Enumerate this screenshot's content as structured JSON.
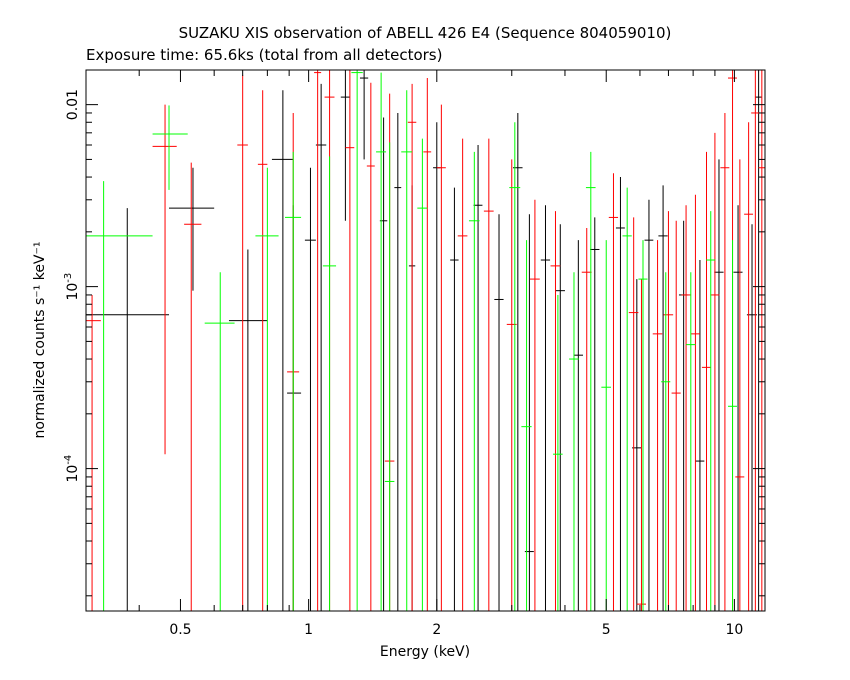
{
  "chart_data": {
    "type": "scatter",
    "title": "SUZAKU XIS observation of ABELL 426 E4 (Sequence 804059010)",
    "subtitle": "Exposure time: 65.6ks (total from all detectors)",
    "xlabel": "Energy (keV)",
    "ylabel": "normalized counts s⁻¹ keV⁻¹",
    "x_scale": "log",
    "y_scale": "log",
    "xlim": [
      0.3,
      11.8
    ],
    "ylim": [
      1.65e-05,
      0.0155
    ],
    "x_ticks": [
      {
        "value": 0.5,
        "label": "0.5"
      },
      {
        "value": 1,
        "label": "1"
      },
      {
        "value": 2,
        "label": "2"
      },
      {
        "value": 5,
        "label": "5"
      },
      {
        "value": 10,
        "label": "10"
      }
    ],
    "y_ticks": [
      {
        "value": 0.0001,
        "label": "10",
        "exponent": "-4"
      },
      {
        "value": 0.001,
        "label": "10",
        "exponent": "-3"
      },
      {
        "value": 0.01,
        "label": "0.01",
        "exponent": ""
      }
    ],
    "grid": false,
    "legend": "none",
    "series": [
      {
        "color": "#000000",
        "points": [
          {
            "x": 0.375,
            "xlo": 0.3,
            "xhi": 0.47,
            "y": 0.0007,
            "ylo": 0.0,
            "yhi": 0.0027
          },
          {
            "x": 0.535,
            "xlo": 0.47,
            "xhi": 0.6,
            "y": 0.0027,
            "ylo": 0.00095,
            "yhi": 0.0045
          },
          {
            "x": 0.72,
            "xlo": 0.65,
            "xhi": 0.8,
            "y": 0.00065,
            "ylo": 0.0,
            "yhi": 0.0016
          },
          {
            "x": 0.87,
            "xlo": 0.82,
            "xhi": 0.92,
            "y": 0.005,
            "ylo": 0.0,
            "yhi": 0.012
          },
          {
            "x": 0.92,
            "xlo": 0.89,
            "xhi": 0.96,
            "y": 0.00026,
            "ylo": 0.0,
            "yhi": 0.0028
          },
          {
            "x": 1.01,
            "xlo": 0.98,
            "xhi": 1.04,
            "y": 0.0018,
            "ylo": 0.0,
            "yhi": 0.0045
          },
          {
            "x": 1.07,
            "xlo": 1.04,
            "xhi": 1.1,
            "y": 0.006,
            "ylo": 0.0,
            "yhi": 0.013
          },
          {
            "x": 1.22,
            "xlo": 1.19,
            "xhi": 1.25,
            "y": 0.011,
            "ylo": 0.0023,
            "yhi": 0.016
          },
          {
            "x": 1.35,
            "xlo": 1.32,
            "xhi": 1.38,
            "y": 0.014,
            "ylo": 0.005,
            "yhi": 0.016
          },
          {
            "x": 1.5,
            "xlo": 1.47,
            "xhi": 1.53,
            "y": 0.0023,
            "ylo": 0.0,
            "yhi": 0.0085
          },
          {
            "x": 1.62,
            "xlo": 1.59,
            "xhi": 1.65,
            "y": 0.0035,
            "ylo": 0.0,
            "yhi": 0.009
          },
          {
            "x": 1.75,
            "xlo": 1.72,
            "xhi": 1.78,
            "y": 0.0013,
            "ylo": 0.0,
            "yhi": 0.0036
          },
          {
            "x": 2.0,
            "xlo": 1.96,
            "xhi": 2.04,
            "y": 0.0045,
            "ylo": 0.0,
            "yhi": 0.008
          },
          {
            "x": 2.2,
            "xlo": 2.15,
            "xhi": 2.25,
            "y": 0.0014,
            "ylo": 0.0,
            "yhi": 0.0035
          },
          {
            "x": 2.5,
            "xlo": 2.44,
            "xhi": 2.56,
            "y": 0.0028,
            "ylo": 0.0,
            "yhi": 0.006
          },
          {
            "x": 2.8,
            "xlo": 2.73,
            "xhi": 2.87,
            "y": 0.00085,
            "ylo": 0.0,
            "yhi": 0.0025
          },
          {
            "x": 3.1,
            "xlo": 3.02,
            "xhi": 3.18,
            "y": 0.0045,
            "ylo": 0.0,
            "yhi": 0.009
          },
          {
            "x": 3.3,
            "xlo": 3.22,
            "xhi": 3.38,
            "y": 3.5e-05,
            "ylo": 0.0,
            "yhi": 0.0025
          },
          {
            "x": 3.6,
            "xlo": 3.51,
            "xhi": 3.69,
            "y": 0.0014,
            "ylo": 0.0,
            "yhi": 0.0028
          },
          {
            "x": 3.9,
            "xlo": 3.8,
            "xhi": 4.0,
            "y": 0.00095,
            "ylo": 0.0,
            "yhi": 0.0022
          },
          {
            "x": 4.3,
            "xlo": 4.19,
            "xhi": 4.41,
            "y": 0.00042,
            "ylo": 0.0,
            "yhi": 0.0018
          },
          {
            "x": 4.7,
            "xlo": 4.58,
            "xhi": 4.82,
            "y": 0.0016,
            "ylo": 0.0,
            "yhi": 0.0024
          },
          {
            "x": 5.4,
            "xlo": 5.27,
            "xhi": 5.53,
            "y": 0.0021,
            "ylo": 0.0,
            "yhi": 0.004
          },
          {
            "x": 5.9,
            "xlo": 5.75,
            "xhi": 6.05,
            "y": 0.00013,
            "ylo": 0.0,
            "yhi": 0.0011
          },
          {
            "x": 6.3,
            "xlo": 6.15,
            "xhi": 6.45,
            "y": 0.0018,
            "ylo": 0.0,
            "yhi": 0.003
          },
          {
            "x": 6.8,
            "xlo": 6.63,
            "xhi": 6.97,
            "y": 0.0019,
            "ylo": 0.0,
            "yhi": 0.0036
          },
          {
            "x": 7.6,
            "xlo": 7.41,
            "xhi": 7.79,
            "y": 0.0009,
            "ylo": 0.0,
            "yhi": 0.0023
          },
          {
            "x": 8.3,
            "xlo": 8.1,
            "xhi": 8.5,
            "y": 0.00011,
            "ylo": 0.0,
            "yhi": 0.0014
          },
          {
            "x": 9.2,
            "xlo": 8.97,
            "xhi": 9.43,
            "y": 0.0012,
            "ylo": 0.0,
            "yhi": 0.005
          },
          {
            "x": 10.2,
            "xlo": 9.95,
            "xhi": 10.45,
            "y": 0.0012,
            "ylo": 0.0,
            "yhi": 0.0028
          },
          {
            "x": 11.0,
            "xlo": 10.7,
            "xhi": 11.3,
            "y": 0.0007,
            "ylo": 0.0,
            "yhi": 0.0022
          },
          {
            "x": 11.4,
            "xlo": 11.2,
            "xhi": 11.6,
            "y": 0.011,
            "ylo": 0.0,
            "yhi": 0.016
          }
        ]
      },
      {
        "color": "#ff0000",
        "points": [
          {
            "x": 0.31,
            "xlo": 0.3,
            "xhi": 0.325,
            "y": 0.00065,
            "ylo": 0.0,
            "yhi": 0.0009
          },
          {
            "x": 0.46,
            "xlo": 0.43,
            "xhi": 0.49,
            "y": 0.0059,
            "ylo": 0.00012,
            "yhi": 0.01
          },
          {
            "x": 0.53,
            "xlo": 0.51,
            "xhi": 0.56,
            "y": 0.0022,
            "ylo": 0.0,
            "yhi": 0.0048
          },
          {
            "x": 0.7,
            "xlo": 0.68,
            "xhi": 0.72,
            "y": 0.006,
            "ylo": 0.0,
            "yhi": 0.0145
          },
          {
            "x": 0.78,
            "xlo": 0.76,
            "xhi": 0.8,
            "y": 0.0047,
            "ylo": 0.0,
            "yhi": 0.012
          },
          {
            "x": 0.92,
            "xlo": 0.89,
            "xhi": 0.95,
            "y": 0.00034,
            "ylo": 0.0,
            "yhi": 0.009
          },
          {
            "x": 1.05,
            "xlo": 1.03,
            "xhi": 1.07,
            "y": 0.015,
            "ylo": 0.0,
            "yhi": 0.016
          },
          {
            "x": 1.12,
            "xlo": 1.09,
            "xhi": 1.15,
            "y": 0.011,
            "ylo": 0.0,
            "yhi": 0.016
          },
          {
            "x": 1.25,
            "xlo": 1.22,
            "xhi": 1.28,
            "y": 0.0058,
            "ylo": 0.0,
            "yhi": 0.016
          },
          {
            "x": 1.4,
            "xlo": 1.37,
            "xhi": 1.43,
            "y": 0.0046,
            "ylo": 0.0,
            "yhi": 0.0132
          },
          {
            "x": 1.55,
            "xlo": 1.51,
            "xhi": 1.59,
            "y": 0.00011,
            "ylo": 0.0,
            "yhi": 0.0115
          },
          {
            "x": 1.75,
            "xlo": 1.71,
            "xhi": 1.79,
            "y": 0.008,
            "ylo": 0.0,
            "yhi": 0.013
          },
          {
            "x": 1.9,
            "xlo": 1.86,
            "xhi": 1.94,
            "y": 0.0055,
            "ylo": 0.0,
            "yhi": 0.014
          },
          {
            "x": 2.05,
            "xlo": 2.0,
            "xhi": 2.1,
            "y": 0.0045,
            "ylo": 0.0,
            "yhi": 0.01
          },
          {
            "x": 2.3,
            "xlo": 2.24,
            "xhi": 2.36,
            "y": 0.0019,
            "ylo": 0.0,
            "yhi": 0.0065
          },
          {
            "x": 2.65,
            "xlo": 2.58,
            "xhi": 2.72,
            "y": 0.0026,
            "ylo": 0.0,
            "yhi": 0.0065
          },
          {
            "x": 3.0,
            "xlo": 2.92,
            "xhi": 3.08,
            "y": 0.00062,
            "ylo": 0.0,
            "yhi": 0.005
          },
          {
            "x": 3.4,
            "xlo": 3.31,
            "xhi": 3.49,
            "y": 0.0011,
            "ylo": 0.0,
            "yhi": 0.003
          },
          {
            "x": 3.8,
            "xlo": 3.7,
            "xhi": 3.9,
            "y": 0.0013,
            "ylo": 0.0,
            "yhi": 0.0026
          },
          {
            "x": 4.5,
            "xlo": 4.38,
            "xhi": 4.62,
            "y": 0.0012,
            "ylo": 0.0,
            "yhi": 0.0021
          },
          {
            "x": 5.2,
            "xlo": 5.07,
            "xhi": 5.33,
            "y": 0.0024,
            "ylo": 0.0,
            "yhi": 0.0042
          },
          {
            "x": 5.8,
            "xlo": 5.65,
            "xhi": 5.95,
            "y": 0.00072,
            "ylo": 0.0,
            "yhi": 0.0024
          },
          {
            "x": 6.05,
            "xlo": 5.9,
            "xhi": 6.2,
            "y": 1.8e-05,
            "ylo": 0.0,
            "yhi": 0.0011
          },
          {
            "x": 6.6,
            "xlo": 6.43,
            "xhi": 6.77,
            "y": 0.00055,
            "ylo": 0.0,
            "yhi": 0.0018
          },
          {
            "x": 7.0,
            "xlo": 6.82,
            "xhi": 7.18,
            "y": 0.0007,
            "ylo": 0.0,
            "yhi": 0.0026
          },
          {
            "x": 7.3,
            "xlo": 7.12,
            "xhi": 7.48,
            "y": 0.00026,
            "ylo": 0.0,
            "yhi": 0.0023
          },
          {
            "x": 7.7,
            "xlo": 7.51,
            "xhi": 7.89,
            "y": 0.0009,
            "ylo": 0.0,
            "yhi": 0.0028
          },
          {
            "x": 8.1,
            "xlo": 7.9,
            "xhi": 8.3,
            "y": 0.00055,
            "ylo": 0.0,
            "yhi": 0.0032
          },
          {
            "x": 8.6,
            "xlo": 8.39,
            "xhi": 8.81,
            "y": 0.00036,
            "ylo": 0.0,
            "yhi": 0.0055
          },
          {
            "x": 9.0,
            "xlo": 8.78,
            "xhi": 9.22,
            "y": 0.0009,
            "ylo": 0.0,
            "yhi": 0.007
          },
          {
            "x": 9.5,
            "xlo": 9.27,
            "xhi": 9.73,
            "y": 0.0045,
            "ylo": 0.0,
            "yhi": 0.009
          },
          {
            "x": 9.9,
            "xlo": 9.66,
            "xhi": 10.14,
            "y": 0.014,
            "ylo": 0.0,
            "yhi": 0.016
          },
          {
            "x": 10.3,
            "xlo": 10.05,
            "xhi": 10.55,
            "y": 9e-05,
            "ylo": 0.0,
            "yhi": 0.005
          },
          {
            "x": 10.8,
            "xlo": 10.54,
            "xhi": 11.06,
            "y": 0.0025,
            "ylo": 0.0,
            "yhi": 0.008
          },
          {
            "x": 11.2,
            "xlo": 10.95,
            "xhi": 11.45,
            "y": 0.009,
            "ylo": 0.0,
            "yhi": 0.016
          },
          {
            "x": 11.6,
            "xlo": 11.4,
            "xhi": 11.8,
            "y": 0.0045,
            "ylo": 0.0,
            "yhi": 0.016
          }
        ]
      },
      {
        "color": "#00ff00",
        "points": [
          {
            "x": 0.33,
            "xlo": 0.3,
            "xhi": 0.43,
            "y": 0.0019,
            "ylo": 0.0,
            "yhi": 0.0038
          },
          {
            "x": 0.47,
            "xlo": 0.43,
            "xhi": 0.52,
            "y": 0.0069,
            "ylo": 0.0034,
            "yhi": 0.0099
          },
          {
            "x": 0.62,
            "xlo": 0.57,
            "xhi": 0.67,
            "y": 0.00063,
            "ylo": 0.0,
            "yhi": 0.0012
          },
          {
            "x": 0.8,
            "xlo": 0.75,
            "xhi": 0.85,
            "y": 0.0019,
            "ylo": 0.0,
            "yhi": 0.0045
          },
          {
            "x": 0.92,
            "xlo": 0.88,
            "xhi": 0.96,
            "y": 0.0024,
            "ylo": 0.0,
            "yhi": 0.0055
          },
          {
            "x": 1.12,
            "xlo": 1.08,
            "xhi": 1.16,
            "y": 0.0013,
            "ylo": 0.0,
            "yhi": 0.0052
          },
          {
            "x": 1.3,
            "xlo": 1.26,
            "xhi": 1.34,
            "y": 0.015,
            "ylo": 0.0,
            "yhi": 0.016
          },
          {
            "x": 1.48,
            "xlo": 1.44,
            "xhi": 1.52,
            "y": 0.0055,
            "ylo": 0.0,
            "yhi": 0.015
          },
          {
            "x": 1.55,
            "xlo": 1.51,
            "xhi": 1.59,
            "y": 8.5e-05,
            "ylo": 0.0,
            "yhi": 0.0062
          },
          {
            "x": 1.7,
            "xlo": 1.65,
            "xhi": 1.75,
            "y": 0.0055,
            "ylo": 0.0,
            "yhi": 0.012
          },
          {
            "x": 1.85,
            "xlo": 1.8,
            "xhi": 1.9,
            "y": 0.0027,
            "ylo": 0.0,
            "yhi": 0.0065
          },
          {
            "x": 2.45,
            "xlo": 2.38,
            "xhi": 2.52,
            "y": 0.0023,
            "ylo": 0.0,
            "yhi": 0.0055
          },
          {
            "x": 3.05,
            "xlo": 2.96,
            "xhi": 3.14,
            "y": 0.0035,
            "ylo": 0.0,
            "yhi": 0.008
          },
          {
            "x": 3.25,
            "xlo": 3.16,
            "xhi": 3.34,
            "y": 0.00017,
            "ylo": 0.0,
            "yhi": 0.0018
          },
          {
            "x": 3.85,
            "xlo": 3.75,
            "xhi": 3.95,
            "y": 0.00012,
            "ylo": 0.0,
            "yhi": 0.0009
          },
          {
            "x": 4.2,
            "xlo": 4.09,
            "xhi": 4.31,
            "y": 0.0004,
            "ylo": 0.0,
            "yhi": 0.0012
          },
          {
            "x": 4.6,
            "xlo": 4.48,
            "xhi": 4.72,
            "y": 0.0035,
            "ylo": 0.0,
            "yhi": 0.0055
          },
          {
            "x": 5.0,
            "xlo": 4.87,
            "xhi": 5.13,
            "y": 0.00028,
            "ylo": 0.0,
            "yhi": 0.0018
          },
          {
            "x": 5.6,
            "xlo": 5.46,
            "xhi": 5.74,
            "y": 0.0019,
            "ylo": 0.0,
            "yhi": 0.0035
          },
          {
            "x": 6.1,
            "xlo": 5.95,
            "xhi": 6.25,
            "y": 0.0011,
            "ylo": 0.0,
            "yhi": 0.0018
          },
          {
            "x": 6.9,
            "xlo": 6.73,
            "xhi": 7.07,
            "y": 0.0003,
            "ylo": 0.0,
            "yhi": 0.0012
          },
          {
            "x": 7.9,
            "xlo": 7.7,
            "xhi": 8.1,
            "y": 0.00048,
            "ylo": 0.0,
            "yhi": 0.0012
          },
          {
            "x": 8.8,
            "xlo": 8.58,
            "xhi": 9.02,
            "y": 0.0014,
            "ylo": 0.0,
            "yhi": 0.0026
          },
          {
            "x": 9.9,
            "xlo": 9.66,
            "xhi": 10.14,
            "y": 0.00022,
            "ylo": 0.0,
            "yhi": 0.0018
          }
        ]
      }
    ]
  }
}
